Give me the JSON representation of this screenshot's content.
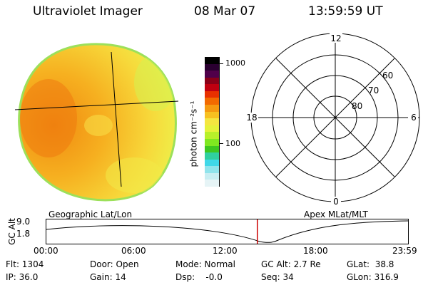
{
  "header": {
    "instrument": "Ultraviolet Imager",
    "date": "08 Mar 07",
    "time": "13:59:59 UT"
  },
  "colorbar": {
    "label": "photon cm⁻²s⁻¹",
    "ticks": [
      "1000",
      "100"
    ],
    "colors": [
      "#000000",
      "#2a0030",
      "#50004a",
      "#8a0018",
      "#c00010",
      "#e83000",
      "#f26a00",
      "#f59a10",
      "#f7c020",
      "#f5e640",
      "#e6f23a",
      "#b8f02a",
      "#80e820",
      "#3ec820",
      "#30d0a0",
      "#40d8e8",
      "#90e4ec",
      "#c8eef2",
      "#e6f4f6"
    ]
  },
  "polar_plot": {
    "mlt_labels": [
      "12",
      "18",
      "6",
      "0"
    ],
    "lat_labels": [
      "60",
      "70",
      "80"
    ]
  },
  "timeline": {
    "y_axis_label": "GC Alt",
    "y_ticks": [
      "9.0",
      "1.8"
    ],
    "left_title": "Geographic Lat/Lon",
    "right_title": "Apex MLat/MLT",
    "x_ticks": [
      "00:00",
      "06:00",
      "12:00",
      "18:00",
      "23:59"
    ],
    "current_time_fraction": 0.5833,
    "marker_color": "#cc0000"
  },
  "info": {
    "flt": "Flt: 1304",
    "ip": "IP: 36.0",
    "door": "Door: Open",
    "gain": "Gain: 14",
    "mode": "Mode: Normal",
    "dsp": "Dsp:    -0.0",
    "gc_alt": "GC Alt: 2.7 Re",
    "seq": "Seq: 34",
    "glat": "GLat:  38.8",
    "glon": "GLon: 316.9"
  }
}
